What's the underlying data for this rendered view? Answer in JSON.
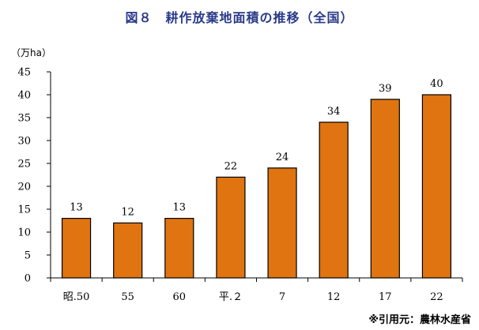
{
  "chart_data": {
    "type": "bar",
    "title": "図８　耕作放棄地面積の推移（全国）",
    "unit_label": "（万ha）",
    "categories": [
      "昭.50",
      "55",
      "60",
      "平.２",
      "7",
      "12",
      "17",
      "22"
    ],
    "values": [
      13,
      12,
      13,
      22,
      24,
      34,
      39,
      40
    ],
    "data_labels": [
      "13",
      "12",
      "13",
      "22",
      "24",
      "34",
      "39",
      "40"
    ],
    "ylim": [
      0,
      45
    ],
    "yticks": [
      0,
      5,
      10,
      15,
      20,
      25,
      30,
      35,
      40,
      45
    ],
    "grid": false,
    "bar_color": "#e07410",
    "bar_edge_color": "#000000",
    "source": "※引用元：農林水産省"
  }
}
